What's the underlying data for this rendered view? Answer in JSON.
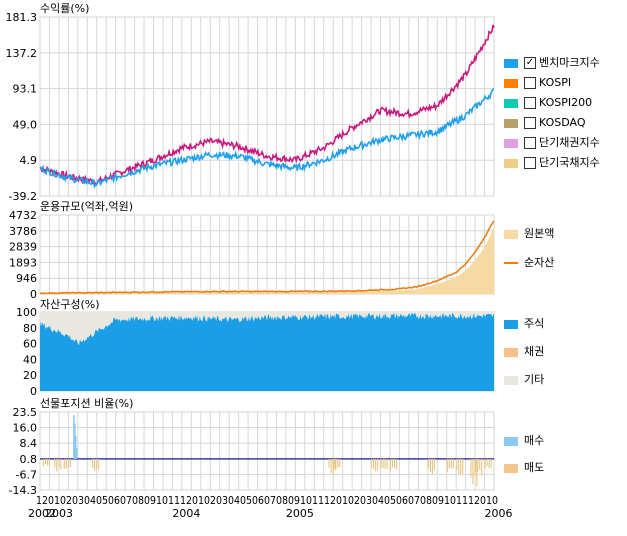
{
  "panels": {
    "returns": {
      "title": "수익률(%)",
      "yticks": [
        "181.3",
        "137.2",
        "93.1",
        "49.0",
        "4.9",
        "-39.2"
      ]
    },
    "aum": {
      "title": "운용규모(억좌,억원)",
      "yticks": [
        "4732",
        "3786",
        "2839",
        "1893",
        "946",
        "0"
      ]
    },
    "composition": {
      "title": "자산구성(%)",
      "yticks": [
        "100",
        "80",
        "60",
        "40",
        "20",
        "0"
      ]
    },
    "futures": {
      "title": "선물포지션 비율(%)",
      "yticks": [
        "23.5",
        "16.0",
        "8.4",
        "0.8",
        "-6.7",
        "-14.3"
      ]
    }
  },
  "legend": {
    "returns": [
      {
        "label": "벤치마크지수",
        "color": "#1fa0ee",
        "checked": true
      },
      {
        "label": "KOSPI",
        "color": "#ff7f00",
        "checked": false
      },
      {
        "label": "KOSPI200",
        "color": "#13c9b0",
        "checked": false
      },
      {
        "label": "KOSDAQ",
        "color": "#b8a06a",
        "checked": false
      },
      {
        "label": "단기채권지수",
        "color": "#e39fe6",
        "checked": false
      },
      {
        "label": "단기국채지수",
        "color": "#efcd85",
        "checked": false
      }
    ],
    "aum": [
      {
        "label": "원본액",
        "color": "#f7d9a3",
        "type": "box"
      },
      {
        "label": "순자산",
        "color": "#ee7d10",
        "type": "line"
      }
    ],
    "composition": [
      {
        "label": "주식",
        "color": "#1b9ee8"
      },
      {
        "label": "채권",
        "color": "#f7c08a"
      },
      {
        "label": "기타",
        "color": "#e8e8e0"
      }
    ],
    "futures": [
      {
        "label": "매수",
        "color": "#8ccaf3"
      },
      {
        "label": "매도",
        "color": "#f5c590"
      }
    ]
  },
  "x_axis": {
    "month_labels": "12010203040506070809101112010203040506070809101112010203040506070809101112010",
    "year_labels": [
      "2002",
      "2003",
      "2004",
      "2005",
      "2006"
    ]
  },
  "chart_data": [
    {
      "type": "line",
      "title": "수익률(%)",
      "ylim": [
        -39.2,
        181.3
      ],
      "x": [
        0,
        3,
        6,
        9,
        12,
        15,
        18,
        21,
        24,
        27,
        30,
        33,
        36,
        39,
        42,
        45,
        48
      ],
      "series": [
        {
          "name": "벤치마크지수",
          "color": "#c8197f",
          "values": [
            -5,
            -15,
            -22,
            -8,
            5,
            20,
            28,
            22,
            10,
            5,
            20,
            45,
            66,
            62,
            72,
            110,
            170
          ]
        },
        {
          "color": "#1fa0ee",
          "values": [
            -5,
            -17,
            -24,
            -12,
            -2,
            5,
            12,
            10,
            0,
            -5,
            5,
            20,
            30,
            35,
            40,
            60,
            90
          ]
        }
      ]
    },
    {
      "type": "area",
      "title": "운용규모(억좌,억원)",
      "ylim": [
        0,
        4732
      ],
      "x": [
        0,
        6,
        12,
        18,
        24,
        30,
        34,
        38,
        40,
        42,
        44,
        45,
        46,
        47,
        48
      ],
      "series": [
        {
          "name": "원본액",
          "values": [
            50,
            60,
            80,
            100,
            110,
            120,
            150,
            200,
            300,
            600,
            1000,
            1400,
            2000,
            2800,
            4000
          ]
        },
        {
          "name": "순자산",
          "values": [
            50,
            80,
            120,
            150,
            150,
            160,
            200,
            300,
            450,
            800,
            1300,
            1800,
            2500,
            3400,
            4400
          ]
        }
      ]
    },
    {
      "type": "area",
      "title": "자산구성(%)",
      "ylim": [
        0,
        100
      ],
      "x": [
        0,
        3,
        4,
        6,
        8,
        12,
        16,
        20,
        24,
        30,
        36,
        42,
        48
      ],
      "series": [
        {
          "name": "주식",
          "values": [
            85,
            70,
            60,
            75,
            90,
            92,
            93,
            90,
            93,
            94,
            95,
            95,
            95
          ]
        },
        {
          "name": "채권",
          "values": [
            0,
            0,
            0,
            0,
            0,
            0,
            0,
            0,
            0,
            0,
            0,
            0,
            0
          ]
        },
        {
          "name": "기타",
          "values": [
            15,
            30,
            40,
            25,
            10,
            8,
            7,
            10,
            7,
            6,
            5,
            5,
            5
          ]
        }
      ]
    },
    {
      "type": "bar",
      "title": "선물포지션 비율(%)",
      "ylim": [
        -14.3,
        23.5
      ],
      "series": [
        {
          "name": "매수",
          "values": [
            [
              3.5,
              22
            ],
            [
              3.6,
              18
            ],
            [
              3.7,
              12
            ],
            [
              3.8,
              6
            ]
          ]
        },
        {
          "name": "매도",
          "values": [
            [
              0.3,
              -3
            ],
            [
              1.5,
              -5
            ],
            [
              2.5,
              -4
            ],
            [
              5.5,
              -6
            ],
            [
              30.5,
              -6
            ],
            [
              31,
              -5
            ],
            [
              35,
              -5
            ],
            [
              36,
              -6
            ],
            [
              37,
              -5
            ],
            [
              41,
              -6
            ],
            [
              43,
              -5
            ],
            [
              44,
              -8
            ],
            [
              45.5,
              -12
            ],
            [
              46,
              -7
            ],
            [
              47,
              -4
            ]
          ]
        }
      ]
    }
  ]
}
